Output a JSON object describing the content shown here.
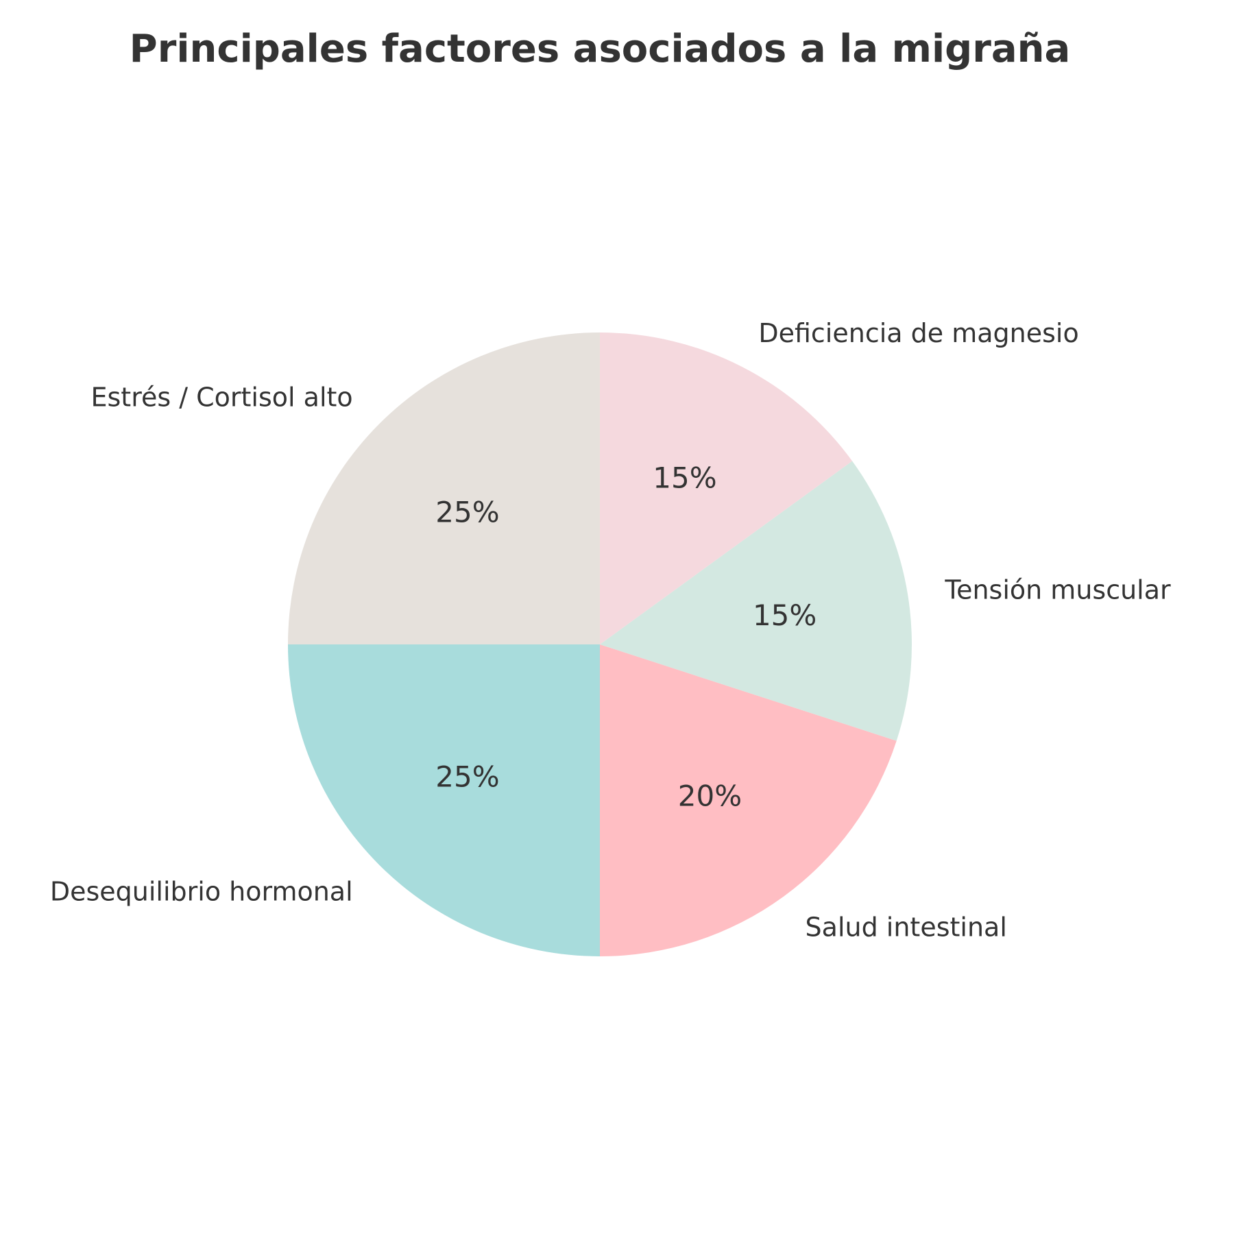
{
  "chart_data": {
    "type": "pie",
    "title": "Principales factores asociados a la migraña",
    "start_angle_deg": 90,
    "direction": "counterclockwise",
    "slices": [
      {
        "label": "Estrés / Cortisol alto",
        "value": 25,
        "pct_label": "25%",
        "color": "#E6E1DC"
      },
      {
        "label": "Desequilibrio hormonal",
        "value": 25,
        "pct_label": "25%",
        "color": "#A8DCDC"
      },
      {
        "label": "Salud intestinal",
        "value": 20,
        "pct_label": "20%",
        "color": "#FFBEC3"
      },
      {
        "label": "Tensión muscular",
        "value": 15,
        "pct_label": "15%",
        "color": "#D3E8E1"
      },
      {
        "label": "Deficiencia de magnesio",
        "value": 15,
        "pct_label": "15%",
        "color": "#F5D9DE"
      }
    ]
  }
}
